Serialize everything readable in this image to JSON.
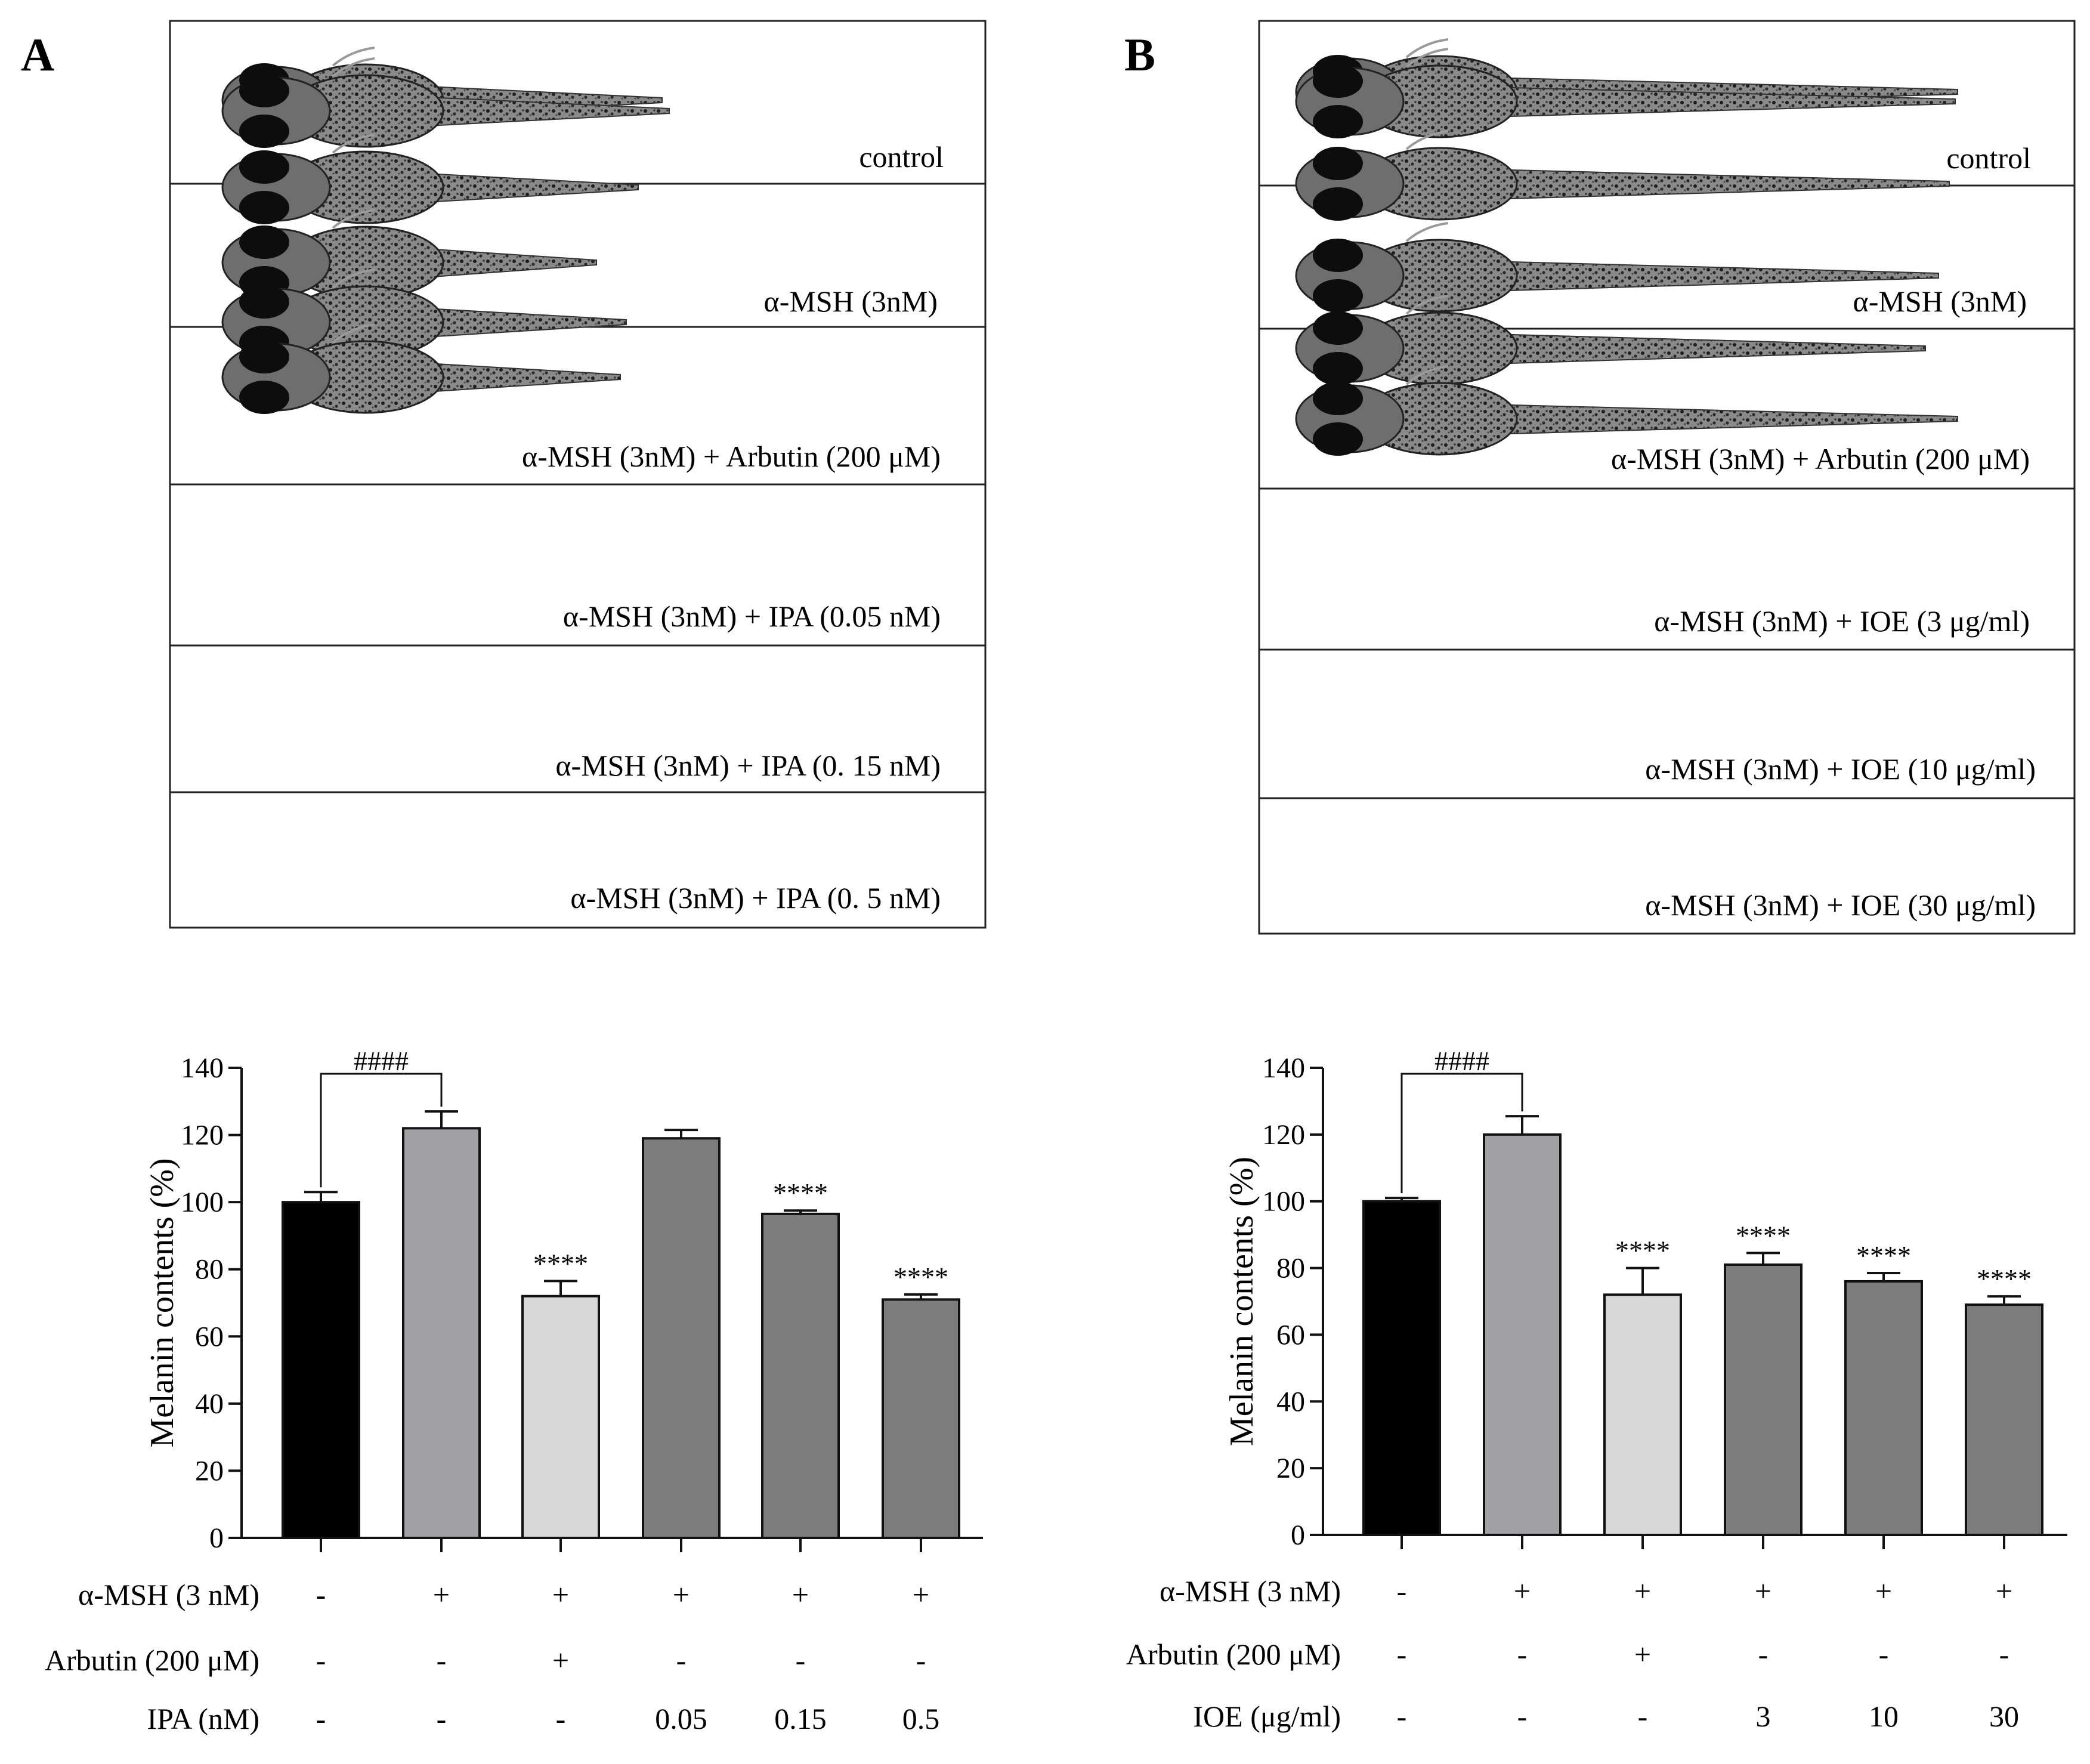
{
  "panels": [
    {
      "label": "A",
      "captions": [
        "control",
        "α-MSH (3nM)",
        "α-MSH (3nM) + Arbutin (200 μM)",
        "α-MSH (3nM) + IPA (0.05 nM)",
        "α-MSH (3nM) + IPA (0. 15 nM)",
        "α-MSH (3nM) + IPA (0. 5 nM)"
      ]
    },
    {
      "label": "B",
      "captions": [
        "control",
        "α-MSH (3nM)",
        "α-MSH (3nM) + Arbutin (200 μM)",
        "α-MSH (3nM) + IOE (3 μg/ml)",
        "α-MSH (3nM) + IOE (10 μg/ml)",
        "α-MSH (3nM) + IOE (30 μg/ml)"
      ]
    }
  ],
  "colors": {
    "black": "#000000",
    "gray_light": "#a2a2a6",
    "pale": "#d8d8d8",
    "gray_dark": "#7c7c7c"
  },
  "chart_data": [
    {
      "type": "bar",
      "ylabel": "Melanin contents (%)",
      "ylim": [
        0,
        140
      ],
      "yticks": [
        0,
        20,
        40,
        60,
        80,
        100,
        120,
        140
      ],
      "values": [
        100,
        122,
        72,
        119,
        96.5,
        71
      ],
      "errors": [
        3,
        5,
        4.5,
        2.5,
        1,
        1.5
      ],
      "bar_colors": [
        "#000000",
        "#a2a2a6",
        "#d8d8d8",
        "#7c7c7c",
        "#7c7c7c",
        "#7c7c7c"
      ],
      "significance": [
        "",
        "",
        "****",
        "",
        "****",
        "****"
      ],
      "bracket": {
        "from": 0,
        "to": 1,
        "label": "####"
      },
      "condition_rows": [
        {
          "label": "α-MSH (3 nM)",
          "values": [
            "-",
            "+",
            "+",
            "+",
            "+",
            "+"
          ]
        },
        {
          "label": "Arbutin (200 μM)",
          "values": [
            "-",
            "-",
            "+",
            "-",
            "-",
            "-"
          ]
        },
        {
          "label": "IPA (nM)",
          "values": [
            "-",
            "-",
            "-",
            "0.05",
            "0.15",
            "0.5"
          ]
        }
      ]
    },
    {
      "type": "bar",
      "ylabel": "Melanin contents (%)",
      "ylim": [
        0,
        140
      ],
      "yticks": [
        0,
        20,
        40,
        60,
        80,
        100,
        120,
        140
      ],
      "values": [
        100,
        120,
        72,
        81,
        76,
        69
      ],
      "errors": [
        1,
        5.5,
        8,
        3.5,
        2.5,
        2.5
      ],
      "bar_colors": [
        "#000000",
        "#a2a2a6",
        "#d8d8d8",
        "#7c7c7c",
        "#7c7c7c",
        "#7c7c7c"
      ],
      "significance": [
        "",
        "",
        "****",
        "****",
        "****",
        "****"
      ],
      "bracket": {
        "from": 0,
        "to": 1,
        "label": "####"
      },
      "condition_rows": [
        {
          "label": "α-MSH (3 nM)",
          "values": [
            "-",
            "+",
            "+",
            "+",
            "+",
            "+"
          ]
        },
        {
          "label": "Arbutin (200 μM)",
          "values": [
            "-",
            "-",
            "+",
            "-",
            "-",
            "-"
          ]
        },
        {
          "label": "IOE (μg/ml)",
          "values": [
            "-",
            "-",
            "-",
            "3",
            "10",
            "30"
          ]
        }
      ]
    }
  ]
}
